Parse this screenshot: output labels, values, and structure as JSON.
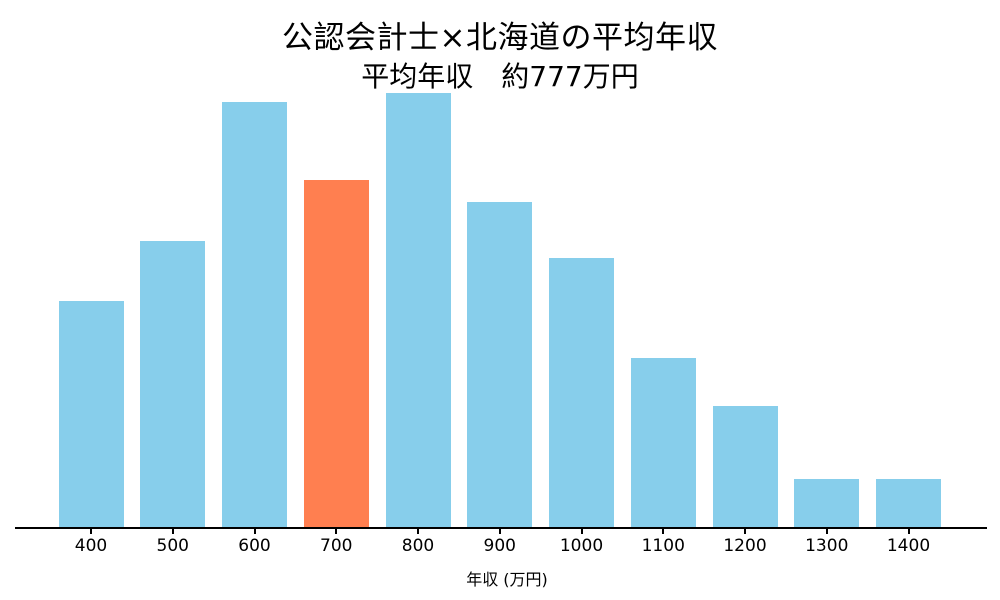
{
  "title": "公認会計士×北海道の平均年収",
  "subtitle": "平均年収　約777万円",
  "chart_data": {
    "type": "bar",
    "title": "公認会計士×北海道の平均年収",
    "subtitle": "平均年収　約777万円",
    "xlabel": "年収 (万円)",
    "ylabel": "",
    "categories": [
      "400",
      "500",
      "600",
      "700",
      "800",
      "900",
      "1000",
      "1100",
      "1200",
      "1300",
      "1400"
    ],
    "values": [
      52,
      66,
      98,
      80,
      100,
      75,
      62,
      39,
      28,
      11,
      11
    ],
    "ylim": [
      0,
      101
    ],
    "grid": false,
    "legend": false,
    "y_axis_shown": false,
    "bar_color": "#87CEEB",
    "highlight_color": "#FF7F50",
    "highlight_category": "700",
    "axis_color": "#000000",
    "background_color": "#FFFFFF"
  }
}
